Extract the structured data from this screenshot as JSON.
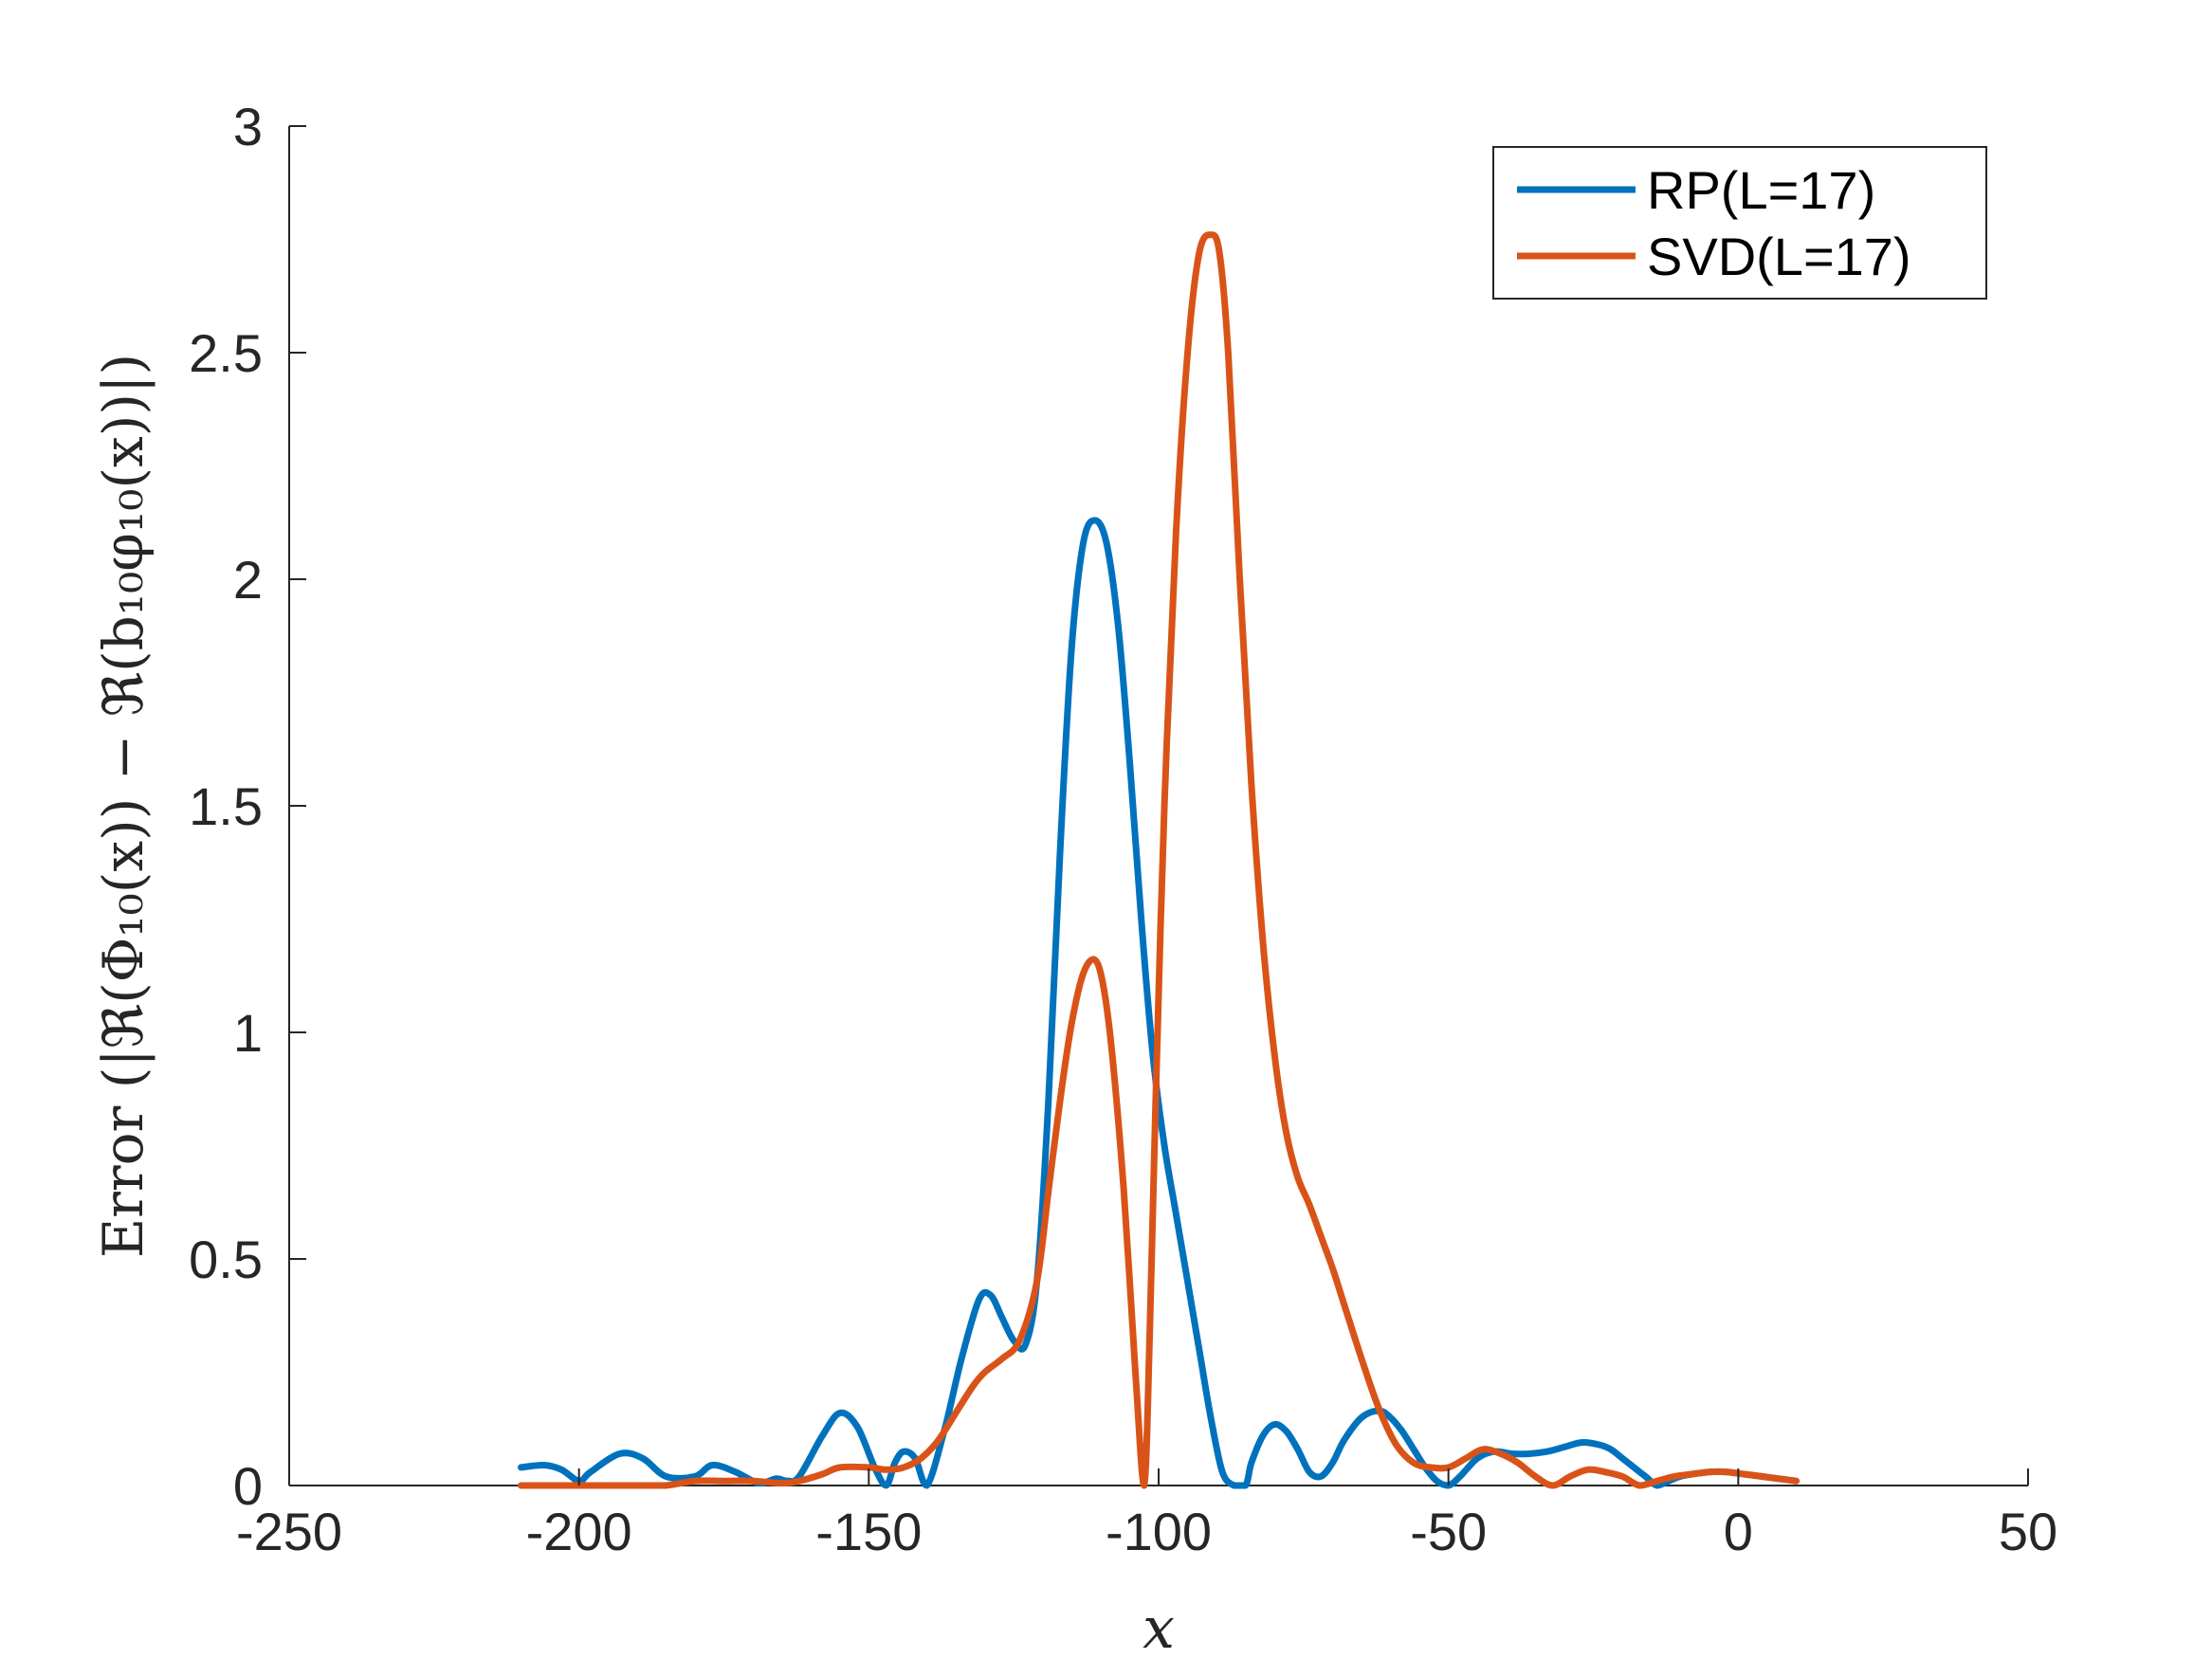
{
  "chart_data": {
    "type": "line",
    "title": "",
    "xlabel": "x",
    "ylabel": "Error  (|ℜ(Φ₁₀(x)) − ℜ(b₁₀φ₁₀(x))|)",
    "xlim": [
      -250,
      50
    ],
    "ylim": [
      0,
      3
    ],
    "xticks": [
      "-250",
      "-200",
      "-150",
      "-100",
      "-50",
      "0",
      "50"
    ],
    "yticks": [
      "0",
      "0.5",
      "1",
      "1.5",
      "2",
      "2.5",
      "3"
    ],
    "grid": false,
    "legend_position": "top-right",
    "series": [
      {
        "name": "RP(L=17)",
        "color": "#0072BD",
        "x": [
          -210,
          -206,
          -203,
          -200,
          -198,
          -193,
          -189,
          -185,
          -180,
          -177,
          -173,
          -169,
          -166,
          -164,
          -162,
          -158,
          -155,
          -152,
          -149,
          -147,
          -145.5,
          -144,
          -142,
          -140,
          -137,
          -134,
          -131,
          -129,
          -127,
          -125,
          -123,
          -121,
          -119,
          -117,
          -115,
          -113,
          -111,
          -109,
          -107,
          -105,
          -103,
          -101,
          -99,
          -97,
          -95,
          -93,
          -91,
          -89,
          -87,
          -85,
          -84,
          -82,
          -80,
          -78,
          -76,
          -74,
          -72,
          -70,
          -68,
          -65,
          -62,
          -60,
          -58,
          -56,
          -54,
          -52,
          -50,
          -48,
          -45,
          -42,
          -39,
          -36,
          -33,
          -30,
          -27,
          -24,
          -22,
          -20,
          -18,
          -16,
          -14,
          -12,
          -10,
          -8,
          -5,
          -2,
          1,
          4,
          7,
          10
        ],
        "y": [
          0.04,
          0.045,
          0.035,
          0.01,
          0.03,
          0.07,
          0.06,
          0.02,
          0.02,
          0.045,
          0.03,
          0.005,
          0.015,
          0.01,
          0.02,
          0.11,
          0.16,
          0.13,
          0.04,
          0.0,
          0.05,
          0.075,
          0.06,
          0.0,
          0.12,
          0.28,
          0.41,
          0.42,
          0.37,
          0.32,
          0.31,
          0.45,
          0.85,
          1.4,
          1.85,
          2.08,
          2.13,
          2.08,
          1.9,
          1.6,
          1.25,
          0.95,
          0.75,
          0.6,
          0.45,
          0.3,
          0.15,
          0.03,
          0.0,
          0.0,
          0.05,
          0.11,
          0.135,
          0.12,
          0.08,
          0.03,
          0.02,
          0.05,
          0.1,
          0.15,
          0.165,
          0.15,
          0.12,
          0.08,
          0.04,
          0.01,
          0.0,
          0.02,
          0.06,
          0.075,
          0.07,
          0.07,
          0.075,
          0.085,
          0.095,
          0.09,
          0.08,
          0.06,
          0.04,
          0.02,
          0.0,
          0.01,
          0.02,
          0.025,
          0.03,
          0.03,
          0.025,
          0.02,
          0.015,
          0.01
        ]
      },
      {
        "name": "SVD(L=17)",
        "color": "#D95319",
        "x": [
          -210,
          -200,
          -190,
          -185,
          -180,
          -175,
          -170,
          -165,
          -162,
          -158,
          -155,
          -150,
          -147,
          -144,
          -141,
          -138,
          -135,
          -132,
          -130,
          -127,
          -124,
          -121,
          -119,
          -117,
          -115,
          -113,
          -111,
          -109.5,
          -108,
          -106,
          -104,
          -102.5,
          -101.5,
          -100.5,
          -99,
          -97,
          -95,
          -93,
          -91,
          -89.5,
          -88,
          -86,
          -84,
          -82,
          -80,
          -78,
          -76,
          -74,
          -72,
          -70,
          -68,
          -65,
          -62,
          -59,
          -56,
          -53,
          -50,
          -47,
          -44,
          -41,
          -38,
          -35,
          -32,
          -29,
          -26,
          -23,
          -20,
          -17,
          -14,
          -11,
          -8,
          -5,
          -2,
          1,
          4,
          7,
          10
        ],
        "y": [
          0.0,
          0.0,
          0.0,
          0.0,
          0.01,
          0.01,
          0.01,
          0.005,
          0.01,
          0.025,
          0.04,
          0.04,
          0.035,
          0.04,
          0.06,
          0.1,
          0.16,
          0.22,
          0.25,
          0.28,
          0.32,
          0.45,
          0.65,
          0.85,
          1.02,
          1.13,
          1.16,
          1.1,
          0.95,
          0.65,
          0.25,
          0.0,
          0.35,
          0.85,
          1.5,
          2.1,
          2.5,
          2.72,
          2.76,
          2.72,
          2.5,
          2.0,
          1.55,
          1.2,
          0.95,
          0.78,
          0.68,
          0.62,
          0.55,
          0.48,
          0.4,
          0.28,
          0.17,
          0.09,
          0.05,
          0.04,
          0.04,
          0.06,
          0.08,
          0.07,
          0.05,
          0.02,
          0.0,
          0.02,
          0.035,
          0.03,
          0.02,
          0.0,
          0.01,
          0.02,
          0.025,
          0.03,
          0.03,
          0.025,
          0.02,
          0.015,
          0.01
        ]
      }
    ]
  }
}
